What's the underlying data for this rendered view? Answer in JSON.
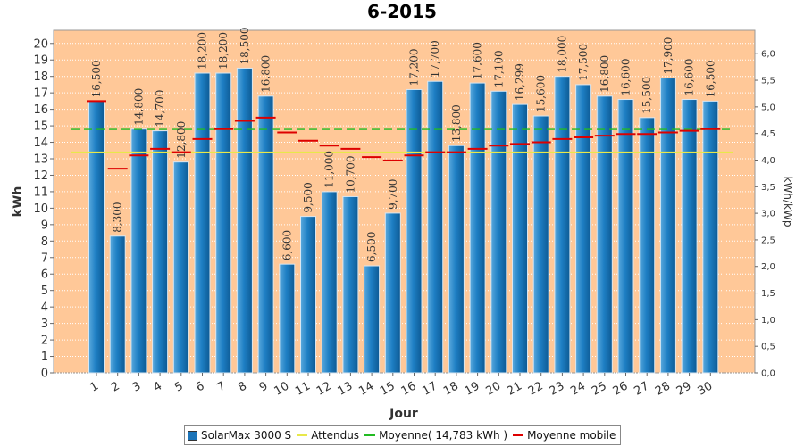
{
  "chart_data": {
    "type": "bar",
    "title": "6-2015",
    "xlabel": "Jour",
    "ylabel": "kWh",
    "ylabel_right": "kWh/kWp",
    "ylim": [
      0,
      20.8
    ],
    "ylim_right": [
      0,
      6.44
    ],
    "yticks": [
      "0",
      "1",
      "2",
      "3",
      "4",
      "5",
      "6",
      "7",
      "8",
      "9",
      "10",
      "11",
      "12",
      "13",
      "14",
      "15",
      "16",
      "17",
      "18",
      "19",
      "20"
    ],
    "yticks_right": [
      "0,0",
      "0,5",
      "1,0",
      "1,5",
      "2,0",
      "2,5",
      "3,0",
      "3,5",
      "4,0",
      "4,5",
      "5,0",
      "5,5",
      "6,0"
    ],
    "categories": [
      "1",
      "2",
      "3",
      "4",
      "5",
      "6",
      "7",
      "8",
      "9",
      "10",
      "11",
      "12",
      "13",
      "14",
      "15",
      "16",
      "17",
      "18",
      "19",
      "20",
      "21",
      "22",
      "23",
      "24",
      "25",
      "26",
      "27",
      "28",
      "29",
      "30"
    ],
    "series": [
      {
        "name": "SolarMax 3000 S",
        "type": "bar",
        "color": "#1c74b8",
        "values": [
          16.5,
          8.3,
          14.8,
          14.7,
          12.8,
          18.2,
          18.2,
          18.5,
          16.8,
          6.6,
          9.5,
          11.0,
          10.7,
          6.5,
          9.7,
          17.2,
          17.7,
          13.8,
          17.6,
          17.1,
          16.299,
          15.6,
          18.0,
          17.5,
          16.8,
          16.6,
          15.5,
          17.9,
          16.6,
          16.5
        ],
        "labels": [
          "16,500",
          "8,300",
          "14,800",
          "14,700",
          "12,800",
          "18,200",
          "18,200",
          "18,500",
          "16,800",
          "6,600",
          "9,500",
          "11,000",
          "10,700",
          "6,500",
          "9,700",
          "17,200",
          "17,700",
          "13,800",
          "17,600",
          "17,100",
          "16,299",
          "15,600",
          "18,000",
          "17,500",
          "16,800",
          "16,600",
          "15,500",
          "17,900",
          "16,600",
          "16,500"
        ]
      },
      {
        "name": "Attendus",
        "type": "hline",
        "color": "#e8e84a",
        "value": 13.4
      },
      {
        "name": "Moyenne( 14,783 kWh )",
        "type": "hline",
        "color": "#22bb22",
        "value": 14.783
      },
      {
        "name": "Moyenne mobile",
        "type": "step-marks",
        "color": "#dd0000",
        "values": [
          16.5,
          12.4,
          13.2,
          13.6,
          13.4,
          14.2,
          14.8,
          15.3,
          15.5,
          14.6,
          14.1,
          13.8,
          13.6,
          13.1,
          12.9,
          13.2,
          13.4,
          13.4,
          13.6,
          13.8,
          13.9,
          14.0,
          14.2,
          14.3,
          14.4,
          14.5,
          14.5,
          14.6,
          14.7,
          14.8
        ]
      }
    ],
    "background": "#ffc898",
    "grid": true,
    "legend_position": "bottom"
  }
}
